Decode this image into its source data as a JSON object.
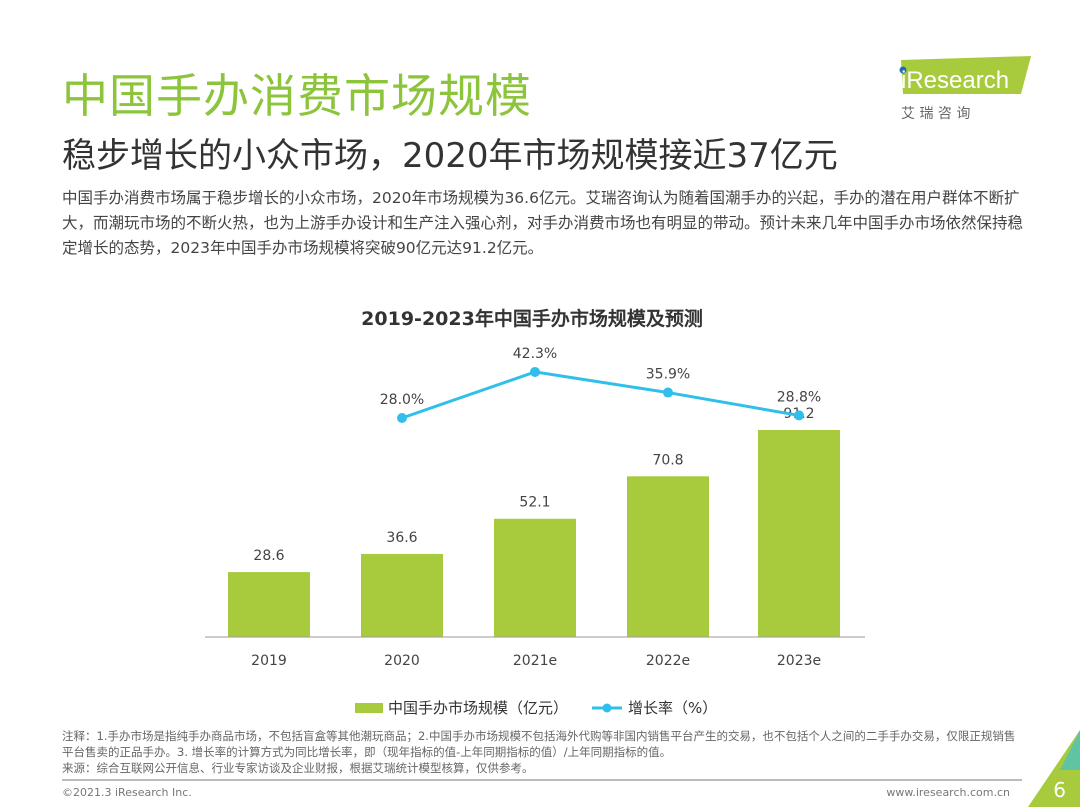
{
  "header": {
    "title": "中国手办消费市场规模",
    "subtitle": "稳步增长的小众市场，2020年市场规模接近37亿元",
    "description": "中国手办消费市场属于稳步增长的小众市场，2020年市场规模为36.6亿元。艾瑞咨询认为随着国潮手办的兴起，手办的潜在用户群体不断扩大，而潮玩市场的不断火热，也为上游手办设计和生产注入强心剂，对手办消费市场也有明显的带动。预计未来几年中国手办市场依然保持稳定增长的态势，2023年中国手办市场规模将突破90亿元达91.2亿元。"
  },
  "logo": {
    "text": "iResearch",
    "cn": "艾 瑞 咨 询"
  },
  "chart_data": {
    "type": "bar+line",
    "title": "2019-2023年中国手办市场规模及预测",
    "categories": [
      "2019",
      "2020",
      "2021e",
      "2022e",
      "2023e"
    ],
    "series": [
      {
        "name": "中国手办市场规模（亿元）",
        "type": "bar",
        "values": [
          28.6,
          36.6,
          52.1,
          70.8,
          91.2
        ],
        "labels": [
          "28.6",
          "36.6",
          "52.1",
          "70.8",
          "91.2"
        ],
        "color": "#a8cb3e"
      },
      {
        "name": "增长率（%）",
        "type": "line",
        "values": [
          null,
          28.0,
          42.3,
          35.9,
          28.8
        ],
        "labels": [
          "",
          "28.0%",
          "42.3%",
          "35.9%",
          "28.8%"
        ],
        "color": "#2fbfea"
      }
    ],
    "legend": "bottom",
    "grid": false
  },
  "notes": [
    "注释：1.手办市场是指纯手办商品市场，不包括盲盒等其他潮玩商品；2.中国手办市场规模不包括海外代购等非国内销售平台产生的交易，也不包括个人之间的二手手办交易，仅限正规销售平台售卖的正品手办。3. 增长率的计算方式为同比增长率，即（现年指标的值-上年同期指标的值）/上年同期指标的值。",
    "来源：综合互联网公开信息、行业专家访谈及企业财报，根据艾瑞统计模型核算，仅供参考。"
  ],
  "footer": {
    "copyright": "©2021.3 iResearch Inc.",
    "url": "www.iresearch.com.cn",
    "page": "6"
  }
}
